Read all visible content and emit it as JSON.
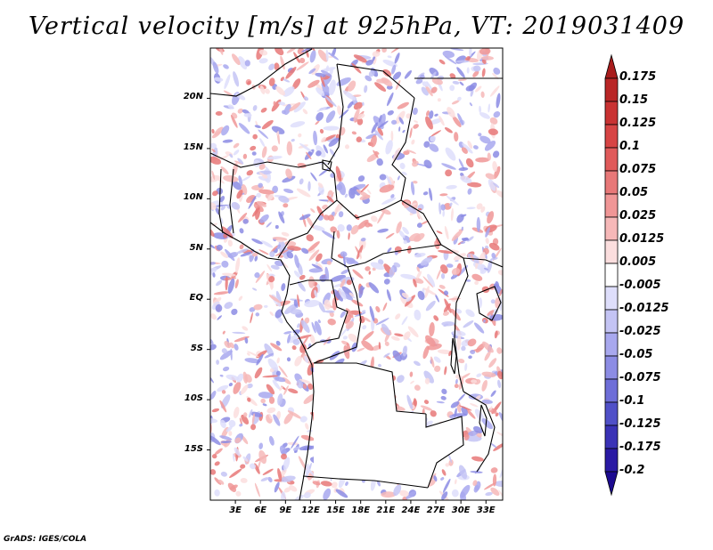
{
  "title": "Vertical velocity [m/s] at 925hPa, VT: 2019031409",
  "footer": "GrADS: IGES/COLA",
  "map": {
    "lon_range": [
      0,
      35
    ],
    "lat_range": [
      -20,
      25
    ],
    "lat_labels": [
      "20N",
      "15N",
      "10N",
      "5N",
      "EQ",
      "5S",
      "10S",
      "15S"
    ],
    "lon_labels": [
      "3E",
      "6E",
      "9E",
      "12E",
      "15E",
      "18E",
      "21E",
      "24E",
      "27E",
      "30E",
      "33E"
    ]
  },
  "colorbar": {
    "labels": [
      "0.175",
      "0.15",
      "0.125",
      "0.1",
      "0.075",
      "0.05",
      "0.025",
      "0.0125",
      "0.005",
      "-0.005",
      "-0.0125",
      "-0.025",
      "-0.05",
      "-0.075",
      "-0.1",
      "-0.125",
      "-0.175",
      "-0.2"
    ],
    "colors": [
      "#a81c1c",
      "#b92626",
      "#c93232",
      "#d74444",
      "#e05a5a",
      "#e87878",
      "#f09696",
      "#f6b8b8",
      "#fbdede",
      "#ffffff",
      "#dedefb",
      "#c4c4f4",
      "#a8a8ee",
      "#8c8ce4",
      "#6e6ed8",
      "#5050c8",
      "#3a32b6",
      "#2a1aa4",
      "#1c0a90"
    ]
  }
}
